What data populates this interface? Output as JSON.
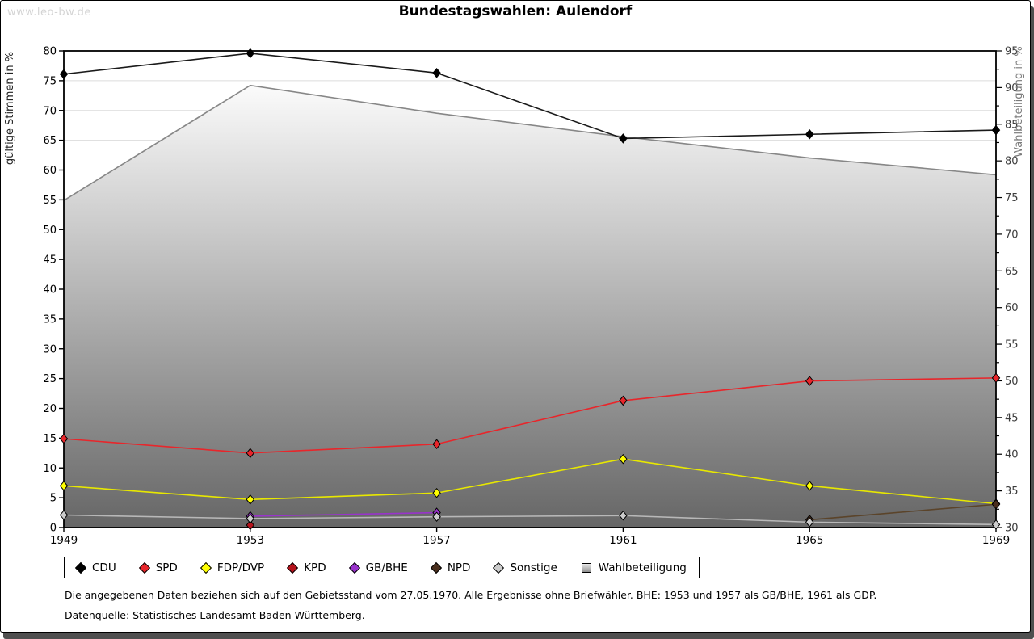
{
  "watermark": "www.leo-bw.de",
  "title": "Bundestagswahlen: Aulendorf",
  "footnotes": {
    "line1": "Die angegebenen Daten beziehen sich auf den Gebietsstand vom 27.05.1970. Alle Ergebnisse ohne Briefwähler. BHE: 1953 und 1957 als GB/BHE, 1961 als GDP.",
    "line2": "Datenquelle: Statistisches Landesamt Baden-Württemberg."
  },
  "chart_data": {
    "type": "line",
    "x": [
      "1949",
      "1953",
      "1957",
      "1961",
      "1965",
      "1969"
    ],
    "left_axis": {
      "label": "gültige Stimmen in %",
      "min": 0,
      "max": 80,
      "tick_step": 5,
      "label_color": "#222222"
    },
    "right_axis": {
      "label": "Wahlbeteiligung in %",
      "min": 30,
      "max": 95,
      "tick_step": 5,
      "minor_tick_step": 2.5,
      "label_color": "#7a7a7a"
    },
    "grid": true,
    "grid_color": "#dcdcdc",
    "frame_color": "#000000",
    "legend_position": "bottom",
    "series": [
      {
        "name": "CDU",
        "axis": "left",
        "kind": "line",
        "color": "#000000",
        "line_color": "#1a1a1a",
        "values": [
          76.1,
          79.6,
          76.3,
          65.3,
          66.0,
          66.7
        ]
      },
      {
        "name": "SPD",
        "axis": "left",
        "kind": "line",
        "color": "#e8262b",
        "line_color": "#e8262b",
        "values": [
          14.9,
          12.5,
          14.0,
          21.3,
          24.6,
          25.1
        ]
      },
      {
        "name": "FDP/DVP",
        "axis": "left",
        "kind": "line",
        "color": "#ffff00",
        "line_color": "#e8e800",
        "values": [
          7.0,
          4.7,
          5.8,
          11.5,
          7.0,
          4.0
        ]
      },
      {
        "name": "KPD",
        "axis": "left",
        "kind": "line",
        "color": "#b5121b",
        "line_color": "#b5121b",
        "values": [
          null,
          0.4,
          null,
          null,
          null,
          null
        ]
      },
      {
        "name": "GB/BHE",
        "axis": "left",
        "kind": "line",
        "color": "#9933cc",
        "line_color": "#9933cc",
        "values": [
          null,
          1.9,
          2.5,
          null,
          null,
          null
        ]
      },
      {
        "name": "NPD",
        "axis": "left",
        "kind": "line",
        "color": "#4a2f1e",
        "line_color": "#5b442a",
        "values": [
          null,
          null,
          null,
          null,
          1.3,
          3.9
        ]
      },
      {
        "name": "Sonstige",
        "axis": "left",
        "kind": "line",
        "color": "#cccccc",
        "line_color": "#b8b8b8",
        "values": [
          2.1,
          1.5,
          1.8,
          2.0,
          0.9,
          0.5
        ]
      },
      {
        "name": "Wahlbeteiligung",
        "axis": "right",
        "kind": "area",
        "color": "#999999",
        "line_color": "#878787",
        "fill_top": "#fbfbfb",
        "fill_bottom": "#666666",
        "values": [
          74.6,
          90.3,
          86.5,
          83.3,
          80.4,
          78.1
        ]
      }
    ]
  }
}
